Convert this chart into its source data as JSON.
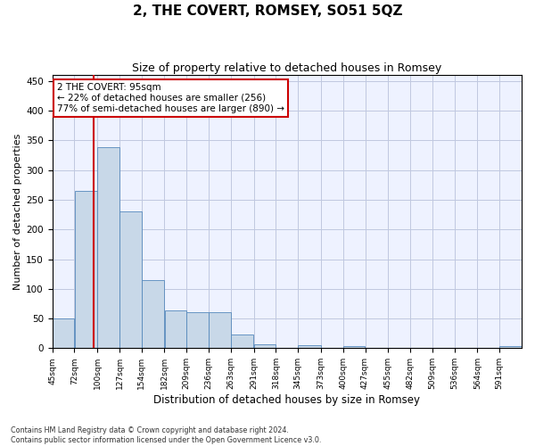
{
  "title": "2, THE COVERT, ROMSEY, SO51 5QZ",
  "subtitle": "Size of property relative to detached houses in Romsey",
  "xlabel": "Distribution of detached houses by size in Romsey",
  "ylabel": "Number of detached properties",
  "bar_edges": [
    45,
    72,
    100,
    127,
    154,
    182,
    209,
    236,
    263,
    291,
    318,
    345,
    373,
    400,
    427,
    455,
    482,
    509,
    536,
    564,
    591,
    618
  ],
  "bar_values": [
    50,
    265,
    338,
    230,
    114,
    64,
    60,
    60,
    23,
    6,
    0,
    5,
    0,
    4,
    0,
    0,
    0,
    0,
    0,
    0,
    4
  ],
  "bar_color": "#c8d8e8",
  "bar_edge_color": "#5588bb",
  "property_size": 95,
  "property_line_color": "#cc0000",
  "annotation_line1": "2 THE COVERT: 95sqm",
  "annotation_line2": "← 22% of detached houses are smaller (256)",
  "annotation_line3": "77% of semi-detached houses are larger (890) →",
  "annotation_box_color": "#ffffff",
  "annotation_box_edge_color": "#cc0000",
  "ylim": [
    0,
    460
  ],
  "yticks": [
    0,
    50,
    100,
    150,
    200,
    250,
    300,
    350,
    400,
    450
  ],
  "background_color": "#eef2ff",
  "grid_color": "#c0c8e0",
  "footer_text": "Contains HM Land Registry data © Crown copyright and database right 2024.\nContains public sector information licensed under the Open Government Licence v3.0.",
  "title_fontsize": 11,
  "subtitle_fontsize": 9,
  "xlabel_fontsize": 8.5,
  "ylabel_fontsize": 8
}
